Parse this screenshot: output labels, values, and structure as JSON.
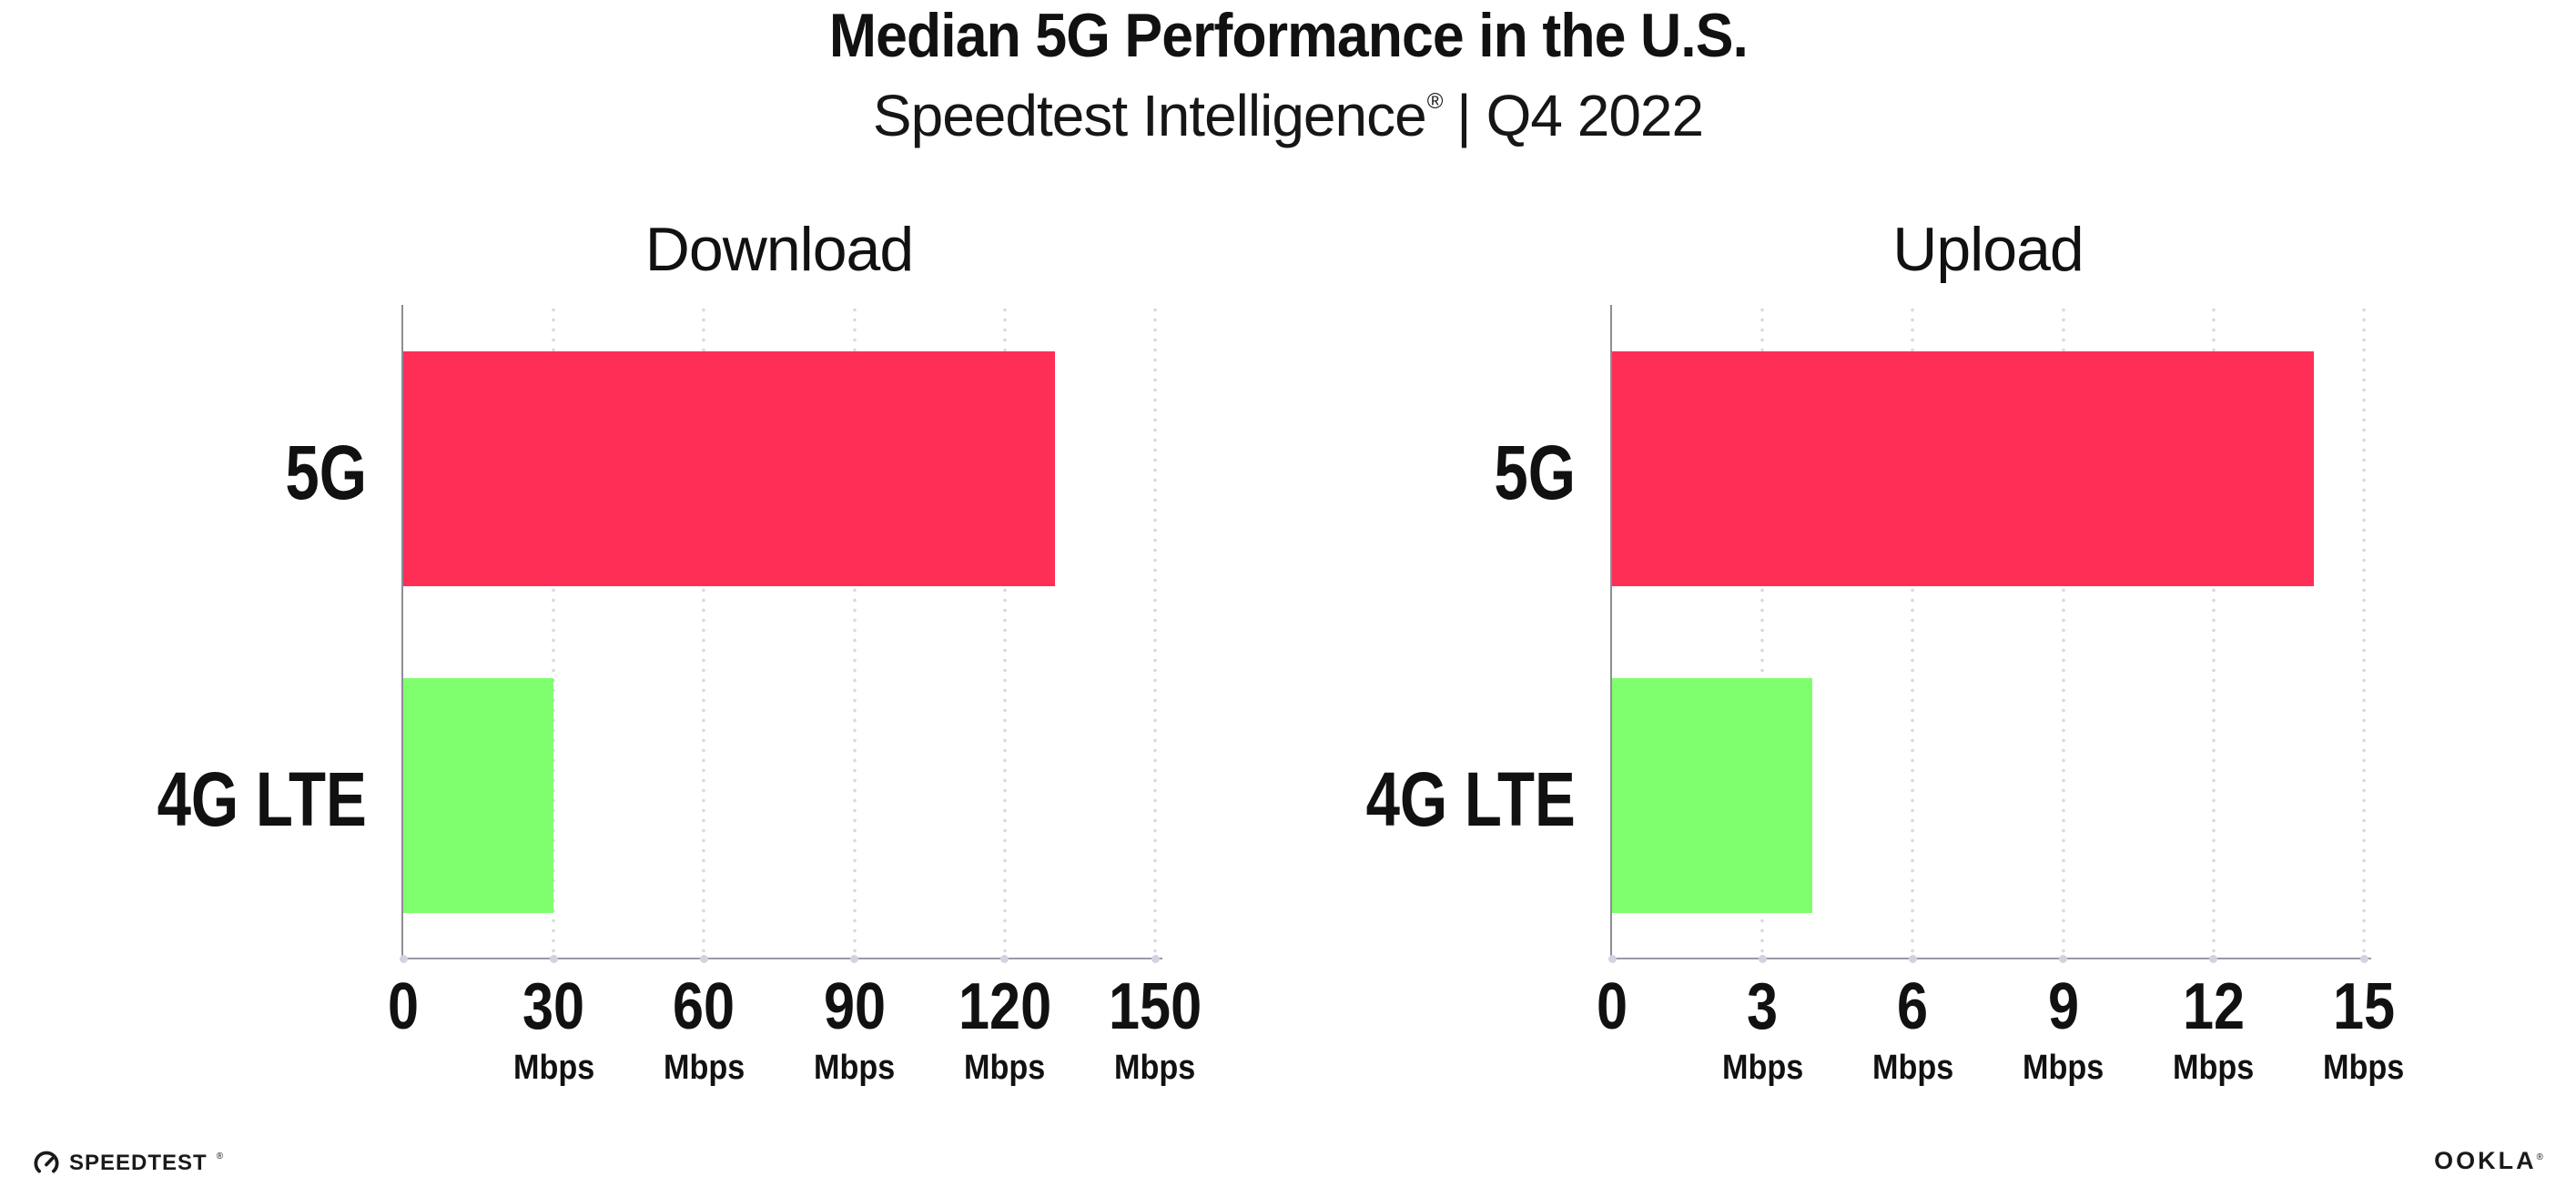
{
  "header": {
    "title": "Median 5G Performance in the U.S.",
    "subtitle_brand": "Speedtest Intelligence",
    "subtitle_reg": "®",
    "subtitle_rest": " | Q4 2022"
  },
  "chart_data": [
    {
      "type": "bar",
      "orientation": "horizontal",
      "title": "Download",
      "categories": [
        "5G",
        "4G LTE"
      ],
      "values": [
        130,
        30
      ],
      "unit": "Mbps",
      "xlabel": "",
      "ylabel": "",
      "xlim": [
        0,
        150
      ],
      "xticks": [
        0,
        30,
        60,
        90,
        120,
        150
      ],
      "bar_colors": [
        "#ff2e57",
        "#80ff6e"
      ],
      "grid": "dotted-vertical",
      "legend": "none"
    },
    {
      "type": "bar",
      "orientation": "horizontal",
      "title": "Upload",
      "categories": [
        "5G",
        "4G LTE"
      ],
      "values": [
        14,
        4
      ],
      "unit": "Mbps",
      "xlabel": "",
      "ylabel": "",
      "xlim": [
        0,
        15
      ],
      "xticks": [
        0,
        3,
        6,
        9,
        12,
        15
      ],
      "bar_colors": [
        "#ff2e57",
        "#80ff6e"
      ],
      "grid": "dotted-vertical",
      "legend": "none"
    }
  ],
  "footer": {
    "speedtest_label": "SPEEDTEST",
    "speedtest_reg": "®",
    "speedtest_icon": "gauge-icon",
    "ookla_label": "OOKLA",
    "ookla_reg": "®"
  },
  "colors": {
    "bar_5g": "#ff2e57",
    "bar_4g_lte": "#80ff6e",
    "axis_line": "#9a9aa2",
    "gridline": "#d8d8e5",
    "text": "#111111"
  }
}
